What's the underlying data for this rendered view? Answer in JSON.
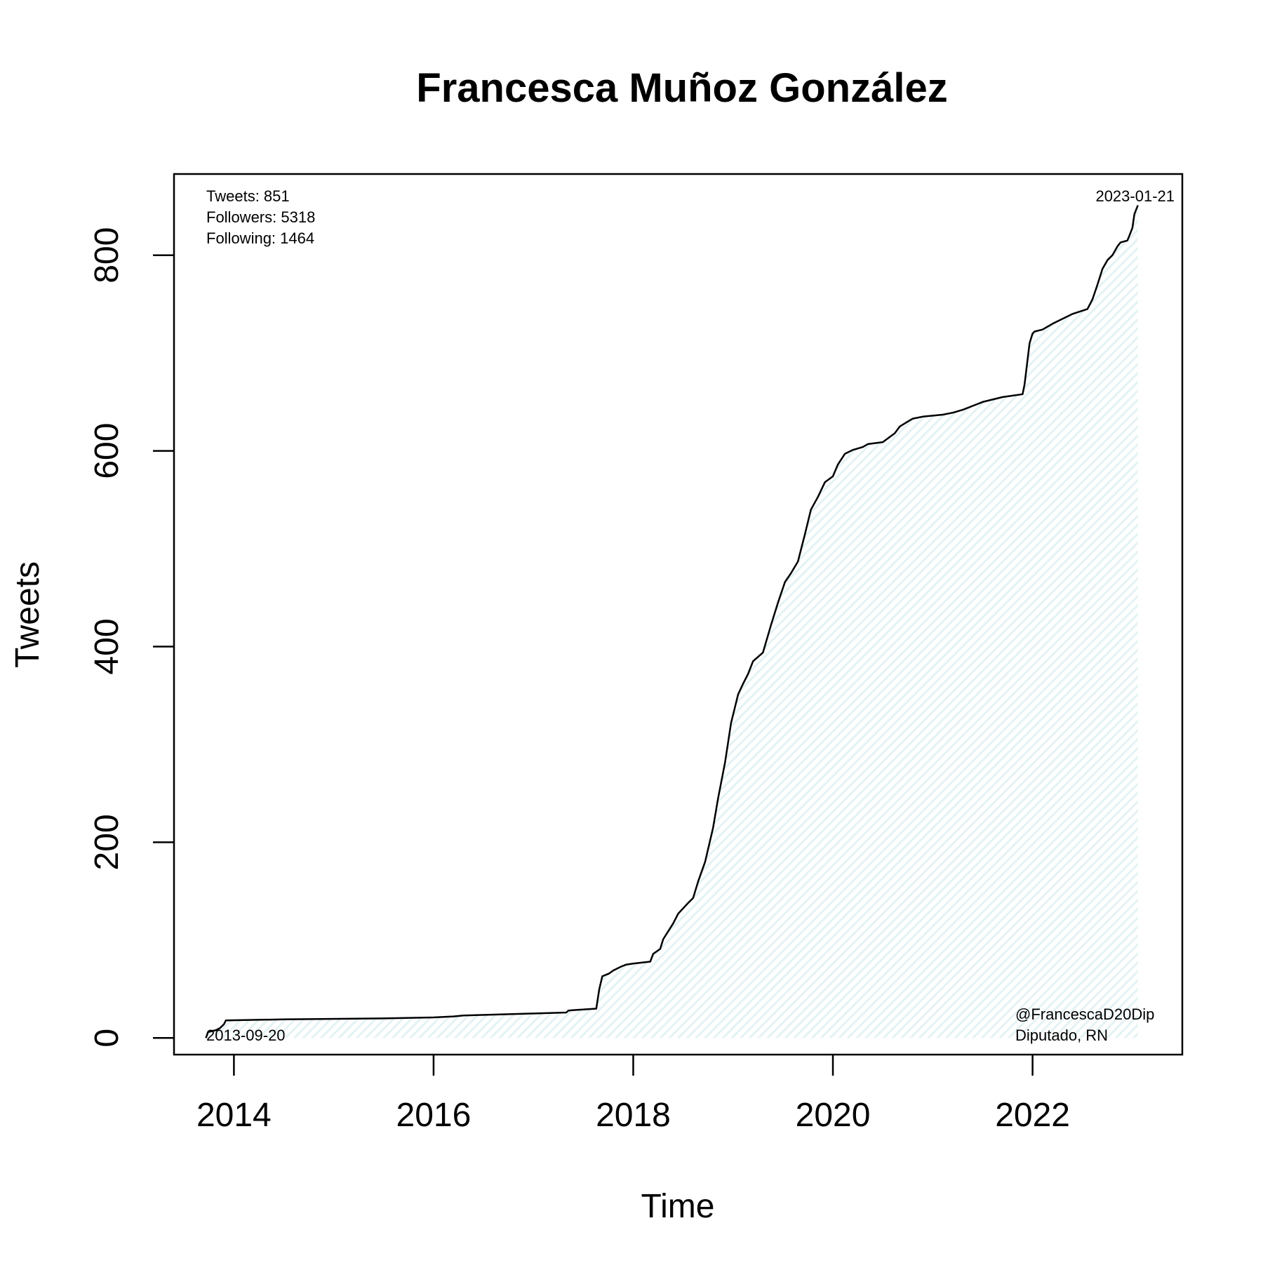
{
  "chart_data": {
    "type": "line",
    "title": "Francesca Muñoz González",
    "xlabel": "Time",
    "ylabel": "Tweets",
    "xlim": [
      2013.4,
      2023.5
    ],
    "ylim": [
      -17,
      883
    ],
    "x_ticks": [
      2014,
      2016,
      2018,
      2020,
      2022
    ],
    "y_ticks": [
      0,
      200,
      400,
      600,
      800
    ],
    "fill_color": "#e4f2f4",
    "line_color": "#000000",
    "series": [
      {
        "x": [
          2013.72,
          2013.74,
          2013.82,
          2013.86,
          2013.9,
          2013.92,
          2014.5,
          2015.5,
          2016.0,
          2016.2,
          2016.3,
          2017.0,
          2017.33,
          2017.35,
          2017.4,
          2017.63,
          2017.66,
          2017.69,
          2017.76,
          2017.8,
          2017.88,
          2017.93,
          2018.0,
          2018.17,
          2018.2,
          2018.27,
          2018.3,
          2018.4,
          2018.45,
          2018.55,
          2018.6,
          2018.65,
          2018.72,
          2018.8,
          2018.85,
          2018.92,
          2018.98,
          2019.05,
          2019.1,
          2019.15,
          2019.2,
          2019.3,
          2019.38,
          2019.45,
          2019.52,
          2019.58,
          2019.65,
          2019.72,
          2019.78,
          2019.85,
          2019.92,
          2020.0,
          2020.05,
          2020.12,
          2020.2,
          2020.3,
          2020.35,
          2020.5,
          2020.62,
          2020.67,
          2020.75,
          2020.8,
          2020.9,
          2021.1,
          2021.2,
          2021.3,
          2021.4,
          2021.5,
          2021.7,
          2021.9,
          2021.92,
          2021.97,
          2022.0,
          2022.02,
          2022.1,
          2022.2,
          2022.3,
          2022.4,
          2022.55,
          2022.6,
          2022.65,
          2022.7,
          2022.75,
          2022.8,
          2022.85,
          2022.88,
          2022.95,
          2022.97,
          2023.0,
          2023.02,
          2023.055
        ],
        "y": [
          0,
          6,
          8,
          10,
          14,
          18,
          19,
          20,
          21,
          22,
          23,
          25,
          26,
          28,
          28.5,
          30,
          50,
          63,
          66,
          69,
          73,
          75,
          76,
          78,
          86,
          91,
          101,
          117,
          127,
          138,
          143,
          160,
          180,
          215,
          245,
          282,
          322,
          351,
          362,
          372,
          385,
          394,
          422,
          445,
          466,
          475,
          487,
          515,
          540,
          553,
          568,
          574,
          586,
          597,
          601,
          604,
          607,
          609,
          618,
          625,
          630,
          633,
          635,
          637,
          639,
          642,
          646,
          650,
          655,
          658,
          668,
          710,
          720,
          722,
          724,
          730,
          735,
          740,
          745,
          755,
          770,
          786,
          795,
          800,
          809,
          813,
          815,
          820,
          828,
          842,
          851
        ]
      }
    ],
    "annotations": {
      "tweets": "Tweets: 851",
      "followers": "Followers: 5318",
      "following": "Following: 1464",
      "end_date": "2023-01-21",
      "start_date": "2013-09-20",
      "handle": "@FrancescaD20Dip",
      "role": "Diputado, RN"
    }
  }
}
